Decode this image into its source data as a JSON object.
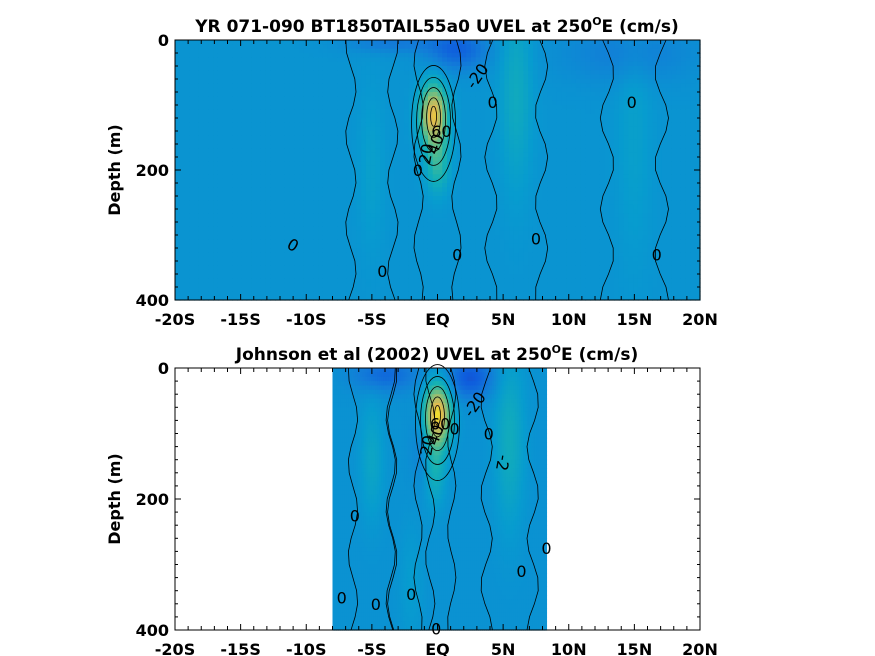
{
  "chart_data": [
    {
      "type": "heatmap",
      "title_main": "YR 071-090 BT1850TAIL55a0 UVEL at 250",
      "title_sup": "O",
      "title_tail": "E (cm/s)",
      "ylabel": "Depth (m)",
      "xlabel": "",
      "xticks": [
        "-20S",
        "-15S",
        "-10S",
        "-5S",
        "EQ",
        "5N",
        "10N",
        "15N",
        "20N"
      ],
      "yticks": [
        "0",
        "200",
        "400"
      ],
      "xlim": [
        -20,
        20
      ],
      "ylim": [
        0,
        400
      ],
      "data_extent": [
        -20,
        20
      ],
      "colormap": "parula",
      "background_value": -2,
      "features": [
        {
          "kind": "jet",
          "lat": -0.3,
          "depth": 115,
          "value": 60,
          "width": 1.0,
          "height": 45
        },
        {
          "kind": "jet-tail",
          "lat": 0.0,
          "depth": 190,
          "value": 22,
          "width": 0.9,
          "height": 45
        },
        {
          "kind": "westward",
          "lat": 1.5,
          "depth": 15,
          "value": -22,
          "width": 2.2,
          "height": 30
        },
        {
          "kind": "westward",
          "lat": -3.5,
          "depth": 5,
          "value": -12,
          "width": 3.5,
          "height": 15
        },
        {
          "kind": "westward",
          "lat": 14.5,
          "depth": 20,
          "value": -10,
          "width": 5.0,
          "height": 45
        },
        {
          "kind": "eastward",
          "lat": 6.0,
          "depth": 80,
          "value": 12,
          "width": 1.2,
          "height": 150
        },
        {
          "kind": "eastward",
          "lat": 15.0,
          "depth": 140,
          "value": 6,
          "width": 1.3,
          "height": 200
        },
        {
          "kind": "eastward",
          "lat": -5.0,
          "depth": 200,
          "value": 6,
          "width": 1.0,
          "height": 120
        }
      ],
      "contour_labels": [
        {
          "text": "-20",
          "lat": 3.0,
          "depth": 55,
          "angle": -55
        },
        {
          "text": "0",
          "lat": 4.2,
          "depth": 95,
          "angle": 0
        },
        {
          "text": "60",
          "lat": 0.3,
          "depth": 140,
          "angle": 0
        },
        {
          "text": "40",
          "lat": -0.2,
          "depth": 160,
          "angle": -70
        },
        {
          "text": "20",
          "lat": -0.9,
          "depth": 175,
          "angle": -80
        },
        {
          "text": "0",
          "lat": -1.5,
          "depth": 200,
          "angle": 0
        },
        {
          "text": "0",
          "lat": -11.0,
          "depth": 315,
          "angle": 30
        },
        {
          "text": "0",
          "lat": -4.2,
          "depth": 355,
          "angle": 0
        },
        {
          "text": "0",
          "lat": 1.5,
          "depth": 330,
          "angle": 0
        },
        {
          "text": "0",
          "lat": 7.5,
          "depth": 305,
          "angle": 0
        },
        {
          "text": "0",
          "lat": 14.8,
          "depth": 95,
          "angle": 0
        },
        {
          "text": "0",
          "lat": 16.7,
          "depth": 330,
          "angle": 0
        }
      ]
    },
    {
      "type": "heatmap",
      "title_main": "Johnson et al (2002) UVEL at 250",
      "title_sup": "O",
      "title_tail": "E (cm/s)",
      "ylabel": "Depth (m)",
      "xlabel": "",
      "xticks": [
        "-20S",
        "-15S",
        "-10S",
        "-5S",
        "EQ",
        "5N",
        "10N",
        "15N",
        "20N"
      ],
      "yticks": [
        "0",
        "200",
        "400"
      ],
      "xlim": [
        -20,
        20
      ],
      "ylim": [
        0,
        400
      ],
      "data_extent": [
        -8,
        8.3
      ],
      "colormap": "parula",
      "background_value": -3,
      "features": [
        {
          "kind": "jet",
          "lat": 0.0,
          "depth": 70,
          "value": 65,
          "width": 1.0,
          "height": 45
        },
        {
          "kind": "jet-tail",
          "lat": -0.2,
          "depth": 150,
          "value": 18,
          "width": 0.8,
          "height": 55
        },
        {
          "kind": "westward",
          "lat": 2.5,
          "depth": 15,
          "value": -25,
          "width": 1.7,
          "height": 30
        },
        {
          "kind": "westward",
          "lat": -4.0,
          "depth": 10,
          "value": -18,
          "width": 2.5,
          "height": 25
        },
        {
          "kind": "westward",
          "lat": -1.2,
          "depth": 120,
          "value": -8,
          "width": 0.8,
          "height": 60
        },
        {
          "kind": "eastward",
          "lat": 5.5,
          "depth": 110,
          "value": 14,
          "width": 1.1,
          "height": 130
        },
        {
          "kind": "eastward",
          "lat": -5.0,
          "depth": 140,
          "value": 10,
          "width": 0.9,
          "height": 90
        },
        {
          "kind": "eastward",
          "lat": -2.0,
          "depth": 330,
          "value": 5,
          "width": 0.9,
          "height": 90
        }
      ],
      "contour_labels": [
        {
          "text": "-20",
          "lat": 2.8,
          "depth": 55,
          "angle": -55
        },
        {
          "text": "60",
          "lat": 0.2,
          "depth": 85,
          "angle": 0
        },
        {
          "text": "40",
          "lat": -0.2,
          "depth": 102,
          "angle": -70
        },
        {
          "text": "20",
          "lat": -0.8,
          "depth": 118,
          "angle": -80
        },
        {
          "text": "0",
          "lat": 1.3,
          "depth": 92,
          "angle": 0
        },
        {
          "text": "0",
          "lat": 3.9,
          "depth": 100,
          "angle": 0
        },
        {
          "text": "-2",
          "lat": 5.0,
          "depth": 145,
          "angle": 100
        },
        {
          "text": "0",
          "lat": -6.3,
          "depth": 225,
          "angle": 0
        },
        {
          "text": "0",
          "lat": 8.3,
          "depth": 275,
          "angle": 0
        },
        {
          "text": "0",
          "lat": 6.4,
          "depth": 310,
          "angle": 0
        },
        {
          "text": "0",
          "lat": -7.3,
          "depth": 350,
          "angle": 0
        },
        {
          "text": "0",
          "lat": -4.7,
          "depth": 360,
          "angle": 0
        },
        {
          "text": "0",
          "lat": -2.0,
          "depth": 345,
          "angle": 0
        },
        {
          "text": "0",
          "lat": -0.1,
          "depth": 398,
          "angle": 0
        }
      ]
    }
  ]
}
